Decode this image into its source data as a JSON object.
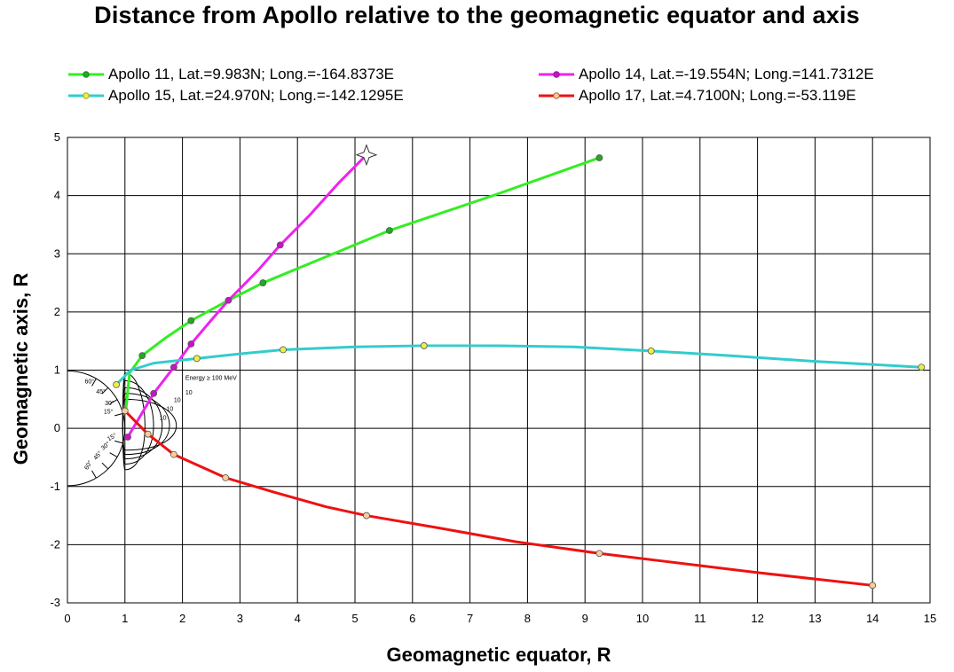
{
  "chart_data": {
    "type": "line",
    "title": "Distance from Apollo  relative to the geomagnetic equator and axis",
    "xlabel": "Geomagnetic equator, R",
    "ylabel": "Geomagnetic axis, R",
    "xlim": [
      0,
      15
    ],
    "ylim": [
      -3,
      5
    ],
    "x_ticks": [
      "0",
      "1",
      "2",
      "3",
      "4",
      "5",
      "6",
      "7",
      "8",
      "9",
      "10",
      "11",
      "12",
      "13",
      "14",
      "15"
    ],
    "y_ticks": [
      "5",
      "4",
      "3",
      "2",
      "1",
      "0",
      "-1",
      "-2",
      "-3"
    ],
    "grid": true,
    "legend_position": "top",
    "series": [
      {
        "name": "Apollo 11, Lat.=9.983N; Long.=-164.8373E",
        "color": "#33ee22",
        "marker_fill": "#22aa22",
        "x": [
          1.02,
          1.08,
          1.3,
          1.7,
          2.15,
          2.8,
          3.4,
          4.5,
          5.6,
          7.4,
          9.25
        ],
        "y": [
          0.35,
          0.95,
          1.25,
          1.55,
          1.85,
          2.2,
          2.5,
          2.95,
          3.4,
          4.0,
          4.65
        ],
        "markers": [
          false,
          false,
          true,
          false,
          true,
          false,
          true,
          false,
          true,
          false,
          true
        ]
      },
      {
        "name": "Apollo 14, Lat.=-19.554N; Long.=141.7312E",
        "color": "#ee22ee",
        "marker_fill": "#cc11cc",
        "x": [
          1.05,
          1.2,
          1.5,
          1.85,
          2.15,
          2.45,
          2.8,
          3.3,
          3.7,
          4.2,
          4.7,
          5.2
        ],
        "y": [
          -0.15,
          0.1,
          0.6,
          1.05,
          1.45,
          1.8,
          2.2,
          2.7,
          3.15,
          3.65,
          4.2,
          4.7
        ],
        "markers": [
          true,
          false,
          true,
          true,
          true,
          false,
          true,
          false,
          true,
          false,
          false,
          false
        ]
      },
      {
        "name": "Apollo 15, Lat.=24.970N; Long.=-142.1295E",
        "color": "#33cccc",
        "marker_fill": "#eeee44",
        "x": [
          0.85,
          1.1,
          1.5,
          2.25,
          3.0,
          3.75,
          5.0,
          6.2,
          7.5,
          8.8,
          10.15,
          11.5,
          13.0,
          14.85
        ],
        "y": [
          0.75,
          1.0,
          1.12,
          1.2,
          1.28,
          1.35,
          1.4,
          1.42,
          1.42,
          1.4,
          1.33,
          1.25,
          1.15,
          1.05
        ],
        "markers": [
          true,
          false,
          false,
          true,
          false,
          true,
          false,
          true,
          false,
          false,
          true,
          false,
          false,
          true
        ]
      },
      {
        "name": "Apollo 17, Lat.=4.7100N; Long.=-53.119E",
        "color": "#ee1111",
        "marker_fill": "#ffcc99",
        "x": [
          1.0,
          1.2,
          1.4,
          1.85,
          2.3,
          2.75,
          3.6,
          4.5,
          5.2,
          6.5,
          7.8,
          9.25,
          10.5,
          12.0,
          14.0
        ],
        "y": [
          0.3,
          0.1,
          -0.1,
          -0.45,
          -0.65,
          -0.85,
          -1.1,
          -1.35,
          -1.5,
          -1.72,
          -1.95,
          -2.15,
          -2.3,
          -2.48,
          -2.7
        ],
        "markers": [
          true,
          false,
          true,
          true,
          false,
          true,
          false,
          false,
          true,
          false,
          false,
          true,
          false,
          false,
          true
        ]
      }
    ],
    "inset": {
      "label": "Energy ≥ 100 MeV",
      "contour_labels": [
        "10",
        "10",
        "10",
        "10"
      ],
      "angle_labels_upper": [
        "60°",
        "45°",
        "30°",
        "15°"
      ],
      "angle_labels_lower": [
        "15°",
        "30°",
        "45°",
        "60°"
      ]
    }
  }
}
